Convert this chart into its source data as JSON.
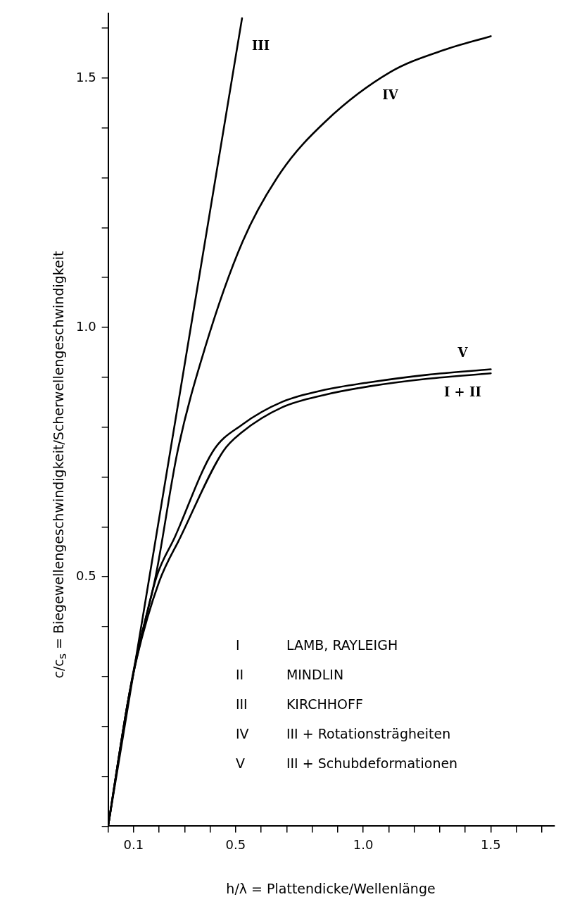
{
  "chart_data": {
    "type": "line",
    "xlabel": "h/λ = Plattendicke/Wellenlänge",
    "ylabel": "c/c$_{s}$ = Biegewellengeschwindigkeit/Scherwellengeschwindigkeit",
    "xlim": [
      0,
      1.75
    ],
    "xticks": [
      {
        "value": 0,
        "label": null
      },
      0.1,
      {
        "value": 0.2,
        "label": null
      },
      {
        "value": 0.3,
        "label": null
      },
      {
        "value": 0.4,
        "label": null
      },
      0.5,
      {
        "value": 0.6,
        "label": null
      },
      {
        "value": 0.7,
        "label": null
      },
      {
        "value": 0.8,
        "label": null
      },
      {
        "value": 0.9,
        "label": null
      },
      {
        "value": 1,
        "label": "1.0"
      },
      {
        "value": 1.1,
        "label": null
      },
      {
        "value": 1.2,
        "label": null
      },
      {
        "value": 1.3,
        "label": null
      },
      {
        "value": 1.4,
        "label": null
      },
      1.5,
      {
        "value": 1.6,
        "label": null
      },
      {
        "value": 1.7,
        "label": null
      }
    ],
    "ylim": [
      0,
      1.63
    ],
    "yticks": [
      {
        "value": 0,
        "label": null
      },
      {
        "value": 0.1,
        "label": null
      },
      {
        "value": 0.2,
        "label": null
      },
      {
        "value": 0.3,
        "label": null
      },
      {
        "value": 0.4,
        "label": null
      },
      0.5,
      {
        "value": 0.6,
        "label": null
      },
      {
        "value": 0.7,
        "label": null
      },
      {
        "value": 0.8,
        "label": null
      },
      {
        "value": 0.9,
        "label": null
      },
      {
        "value": 1,
        "label": "1.0"
      },
      {
        "value": 1.1,
        "label": null
      },
      {
        "value": 1.2,
        "label": null
      },
      {
        "value": 1.3,
        "label": null
      },
      {
        "value": 1.4,
        "label": null
      },
      1.5,
      {
        "value": 1.6,
        "label": null
      }
    ],
    "grid": false,
    "legend": false,
    "marker": "none",
    "line_style": "solid",
    "series": [
      {
        "name": "III",
        "color": "#000000",
        "x": [
          0,
          0.525
        ],
        "values": [
          0,
          1.62
        ]
      },
      {
        "name": "IV",
        "color": "#000000",
        "x": [
          0,
          0.075,
          0.111,
          0.186,
          0.272,
          0.378,
          0.528,
          0.678,
          0.85,
          1.106,
          1.314,
          1.5
        ],
        "values": [
          0,
          0.242,
          0.34,
          0.5,
          0.751,
          0.956,
          1.173,
          1.312,
          1.412,
          1.512,
          1.556,
          1.584
        ]
      },
      {
        "name": "V",
        "color": "#000000",
        "x": [
          0,
          0.075,
          0.111,
          0.19,
          0.261,
          0.41,
          0.525,
          0.683,
          0.85,
          1.025,
          1.25,
          1.5
        ],
        "values": [
          0,
          0.242,
          0.334,
          0.5,
          0.579,
          0.751,
          0.805,
          0.851,
          0.875,
          0.89,
          0.905,
          0.916
        ]
      },
      {
        "name": "I + II",
        "color": "#000000",
        "x": [
          0,
          0.075,
          0.111,
          0.2,
          0.283,
          0.45,
          0.525,
          0.683,
          0.85,
          1.025,
          1.25,
          1.5
        ],
        "values": [
          0,
          0.242,
          0.334,
          0.49,
          0.579,
          0.751,
          0.79,
          0.84,
          0.865,
          0.882,
          0.897,
          0.908
        ]
      }
    ],
    "annotations": [
      "I LAMB, RAYLEIGH",
      "II MINDLIN",
      "III KIRCHHOFF",
      "IV III + Rotationsträgheiten",
      "V III + Schubdeformationen"
    ]
  }
}
